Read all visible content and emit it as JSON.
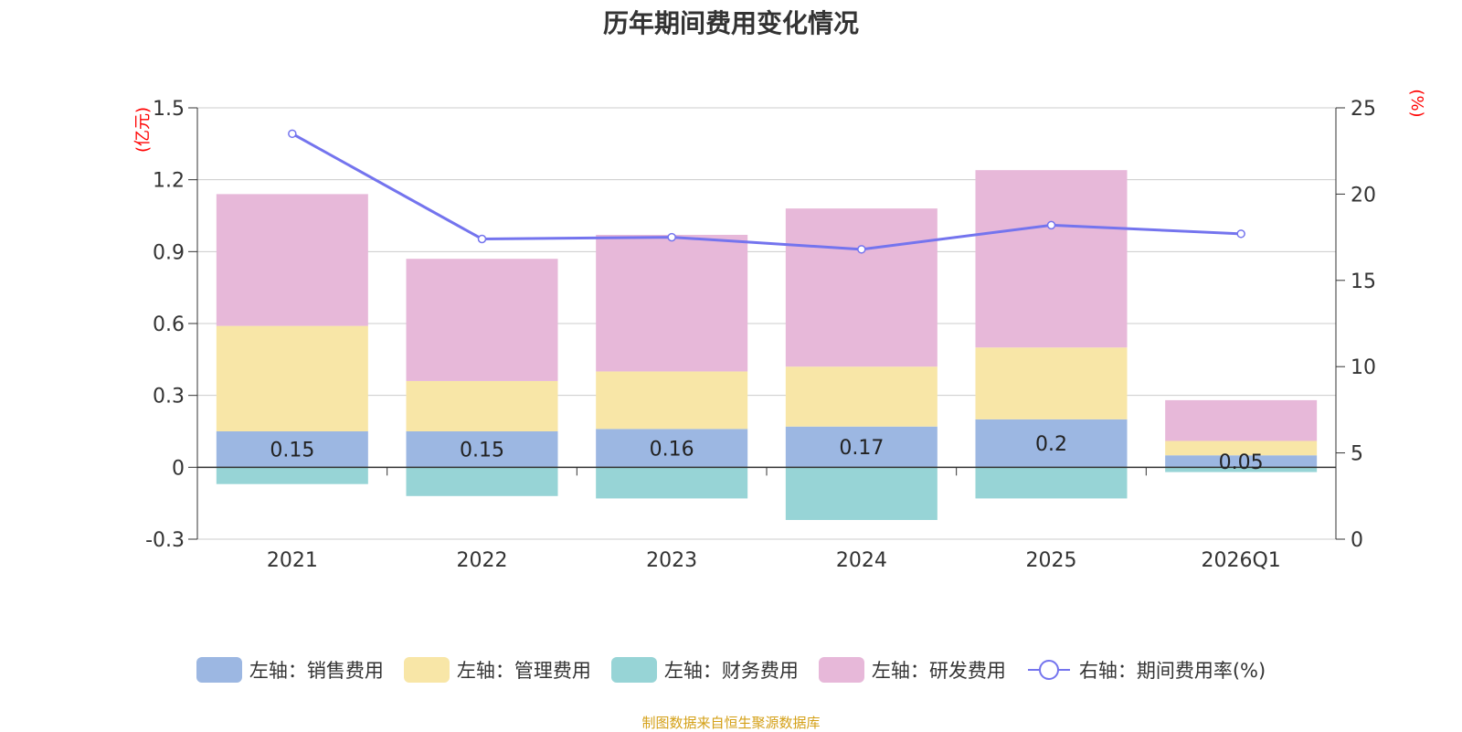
{
  "title": "历年期间费用变化情况",
  "source": "制图数据来自恒生聚源数据库",
  "colors": {
    "sales": "#9cb7e2",
    "admin": "#f8e6a7",
    "finance": "#97d4d6",
    "rnd": "#e7b8d9",
    "rate": "#7474ee",
    "axis_unit": "#ff0000"
  },
  "chart_data": {
    "type": "bar",
    "stacked": true,
    "title": "历年期间费用变化情况",
    "categories": [
      "2021",
      "2022",
      "2023",
      "2024",
      "2025",
      "2026Q1"
    ],
    "left_axis": {
      "unit": "(亿元)",
      "ylim": [
        -0.3,
        1.5
      ],
      "ticks": [
        -0.3,
        0,
        0.3,
        0.6,
        0.9,
        1.2,
        1.5
      ],
      "tick_labels": [
        "-0.3",
        "0",
        "0.3",
        "0.6",
        "0.9",
        "1.2",
        "1.5"
      ]
    },
    "right_axis": {
      "unit": "(%)",
      "ylim": [
        0,
        25
      ],
      "ticks": [
        0,
        5,
        10,
        15,
        20,
        25
      ],
      "tick_labels": [
        "0",
        "5",
        "10",
        "15",
        "20",
        "25"
      ]
    },
    "series": [
      {
        "key": "sales",
        "name": "左轴：销售费用",
        "axis": "left",
        "type": "bar",
        "values": [
          0.15,
          0.15,
          0.16,
          0.17,
          0.2,
          0.05
        ],
        "labels": [
          "0.15",
          "0.15",
          "0.16",
          "0.17",
          "0.2",
          "0.05"
        ]
      },
      {
        "key": "admin",
        "name": "左轴：管理费用",
        "axis": "left",
        "type": "bar",
        "values": [
          0.44,
          0.21,
          0.24,
          0.25,
          0.3,
          0.06
        ]
      },
      {
        "key": "finance",
        "name": "左轴：财务费用",
        "axis": "left",
        "type": "bar",
        "values": [
          -0.07,
          -0.12,
          -0.13,
          -0.22,
          -0.13,
          -0.02
        ]
      },
      {
        "key": "rnd",
        "name": "左轴：研发费用",
        "axis": "left",
        "type": "bar",
        "values": [
          0.55,
          0.51,
          0.57,
          0.66,
          0.74,
          0.17
        ]
      },
      {
        "key": "rate",
        "name": "右轴：期间费用率(%)",
        "axis": "right",
        "type": "line",
        "values": [
          23.5,
          17.4,
          17.5,
          16.8,
          18.2,
          17.7
        ]
      }
    ]
  }
}
